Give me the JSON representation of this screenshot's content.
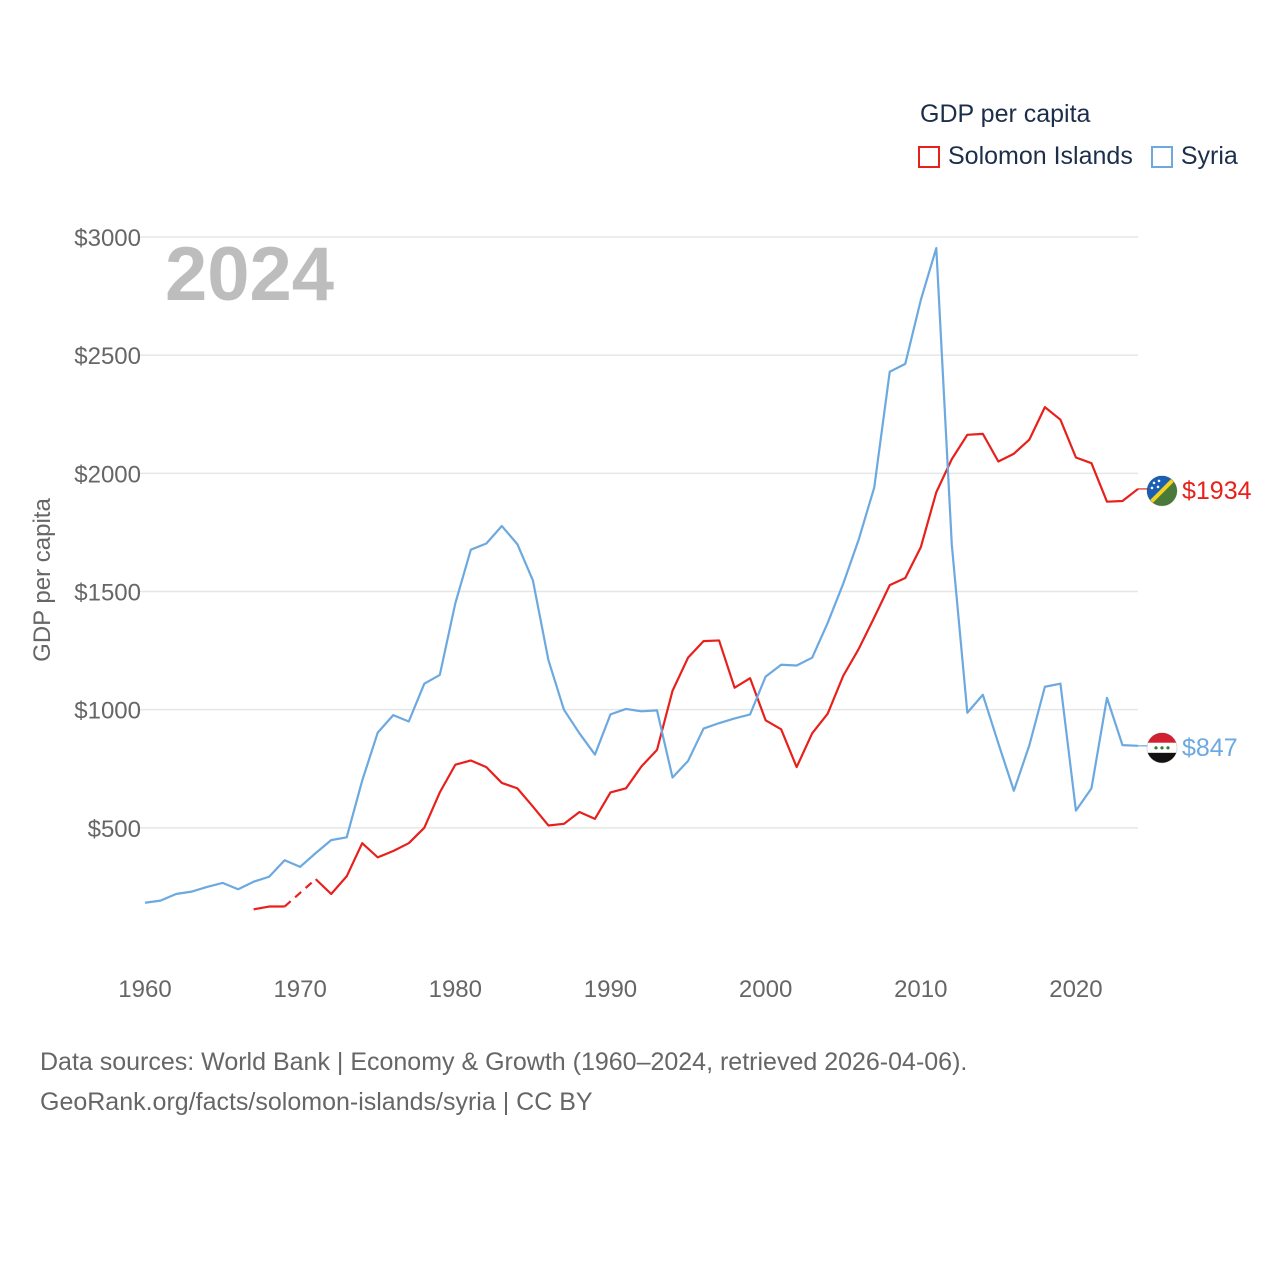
{
  "chart_data": {
    "type": "line",
    "title": "GDP per capita",
    "ylabel": "GDP per capita",
    "xlabel": "",
    "year_label": "2024",
    "xlim": [
      1960,
      2024
    ],
    "ylim": [
      0,
      3000
    ],
    "x_ticks": [
      1960,
      1970,
      1980,
      1990,
      2000,
      2010,
      2020
    ],
    "y_ticks": [
      {
        "value": 500,
        "label": "$500"
      },
      {
        "value": 1000,
        "label": "$1000"
      },
      {
        "value": 1500,
        "label": "$1500"
      },
      {
        "value": 2000,
        "label": "$2000"
      },
      {
        "value": 2500,
        "label": "$2500"
      },
      {
        "value": 3000,
        "label": "$3000"
      }
    ],
    "series": [
      {
        "name": "Solomon Islands",
        "color": "#e8201c",
        "end_label": "$1934",
        "flag": "solomon-islands-flag-icon",
        "x": [
          1967,
          1968,
          1969,
          1970,
          1971,
          1972,
          1973,
          1974,
          1975,
          1976,
          1977,
          1978,
          1979,
          1980,
          1981,
          1982,
          1983,
          1984,
          1985,
          1986,
          1987,
          1988,
          1989,
          1990,
          1991,
          1992,
          1993,
          1994,
          1995,
          1996,
          1997,
          1998,
          1999,
          2000,
          2001,
          2002,
          2003,
          2004,
          2005,
          2006,
          2007,
          2008,
          2009,
          2010,
          2011,
          2012,
          2013,
          2014,
          2015,
          2016,
          2017,
          2018,
          2019,
          2020,
          2021,
          2022,
          2023,
          2024
        ],
        "values": [
          155,
          167,
          167,
          null,
          283,
          220,
          295,
          435,
          375,
          402,
          435,
          500,
          650,
          767,
          785,
          757,
          690,
          667,
          590,
          510,
          517,
          567,
          538,
          650,
          667,
          760,
          830,
          1080,
          1220,
          1290,
          1293,
          1093,
          1133,
          955,
          917,
          757,
          900,
          983,
          1143,
          1257,
          1390,
          1527,
          1557,
          1687,
          1920,
          2060,
          2163,
          2167,
          2050,
          2083,
          2143,
          2280,
          2227,
          2067,
          2043,
          1880,
          1883,
          1934
        ],
        "dashed_gap": {
          "x": [
            1969,
            1971
          ],
          "values": [
            167,
            283
          ]
        }
      },
      {
        "name": "Syria",
        "color": "#6ca9e0",
        "end_label": "$847",
        "flag": "syria-flag-icon",
        "x": [
          1960,
          1961,
          1962,
          1963,
          1964,
          1965,
          1966,
          1967,
          1968,
          1969,
          1970,
          1971,
          1972,
          1973,
          1974,
          1975,
          1976,
          1977,
          1978,
          1979,
          1980,
          1981,
          1982,
          1983,
          1984,
          1985,
          1986,
          1987,
          1988,
          1989,
          1990,
          1991,
          1992,
          1993,
          1994,
          1995,
          1996,
          1997,
          1998,
          1999,
          2000,
          2001,
          2002,
          2003,
          2004,
          2005,
          2006,
          2007,
          2008,
          2009,
          2010,
          2011,
          2012,
          2013,
          2014,
          2015,
          2016,
          2017,
          2018,
          2019,
          2020,
          2021,
          2022,
          2023,
          2024
        ],
        "values": [
          183,
          192,
          220,
          230,
          250,
          267,
          240,
          272,
          293,
          363,
          335,
          393,
          448,
          460,
          700,
          903,
          977,
          950,
          1110,
          1147,
          1450,
          1677,
          1703,
          1777,
          1700,
          1547,
          1210,
          1000,
          900,
          810,
          980,
          1003,
          993,
          997,
          713,
          783,
          920,
          943,
          963,
          980,
          1140,
          1190,
          1187,
          1220,
          1367,
          1533,
          1720,
          1940,
          2430,
          2463,
          2733,
          2953,
          1697,
          987,
          1063,
          857,
          657,
          850,
          1097,
          1110,
          573,
          667,
          1050,
          850,
          847
        ]
      }
    ],
    "legend_title": "GDP per capita",
    "legend_position": "top-right"
  },
  "footer": {
    "sources": "Data sources: World Bank | Economy & Growth (1960–2024, retrieved 2026-04-06).",
    "link": "GeoRank.org/facts/solomon-islands/syria | CC BY"
  }
}
